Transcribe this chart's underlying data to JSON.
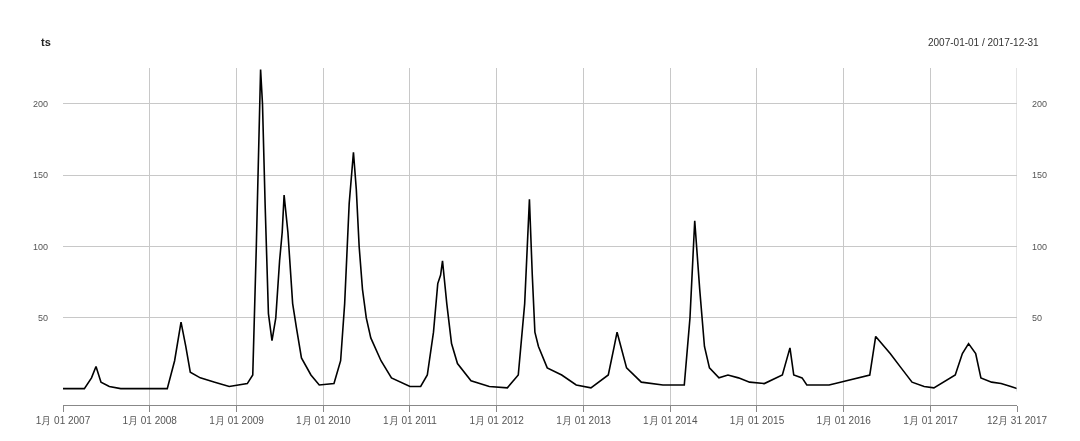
{
  "chart_data": {
    "type": "line",
    "title": "ts",
    "subtitle": "2007-01-01 / 2017-12-31",
    "x": [
      "2007-01-01",
      "2007-04-01",
      "2007-05-01",
      "2007-05-20",
      "2007-06-10",
      "2007-07-15",
      "2007-09-01",
      "2008-03-15",
      "2008-04-15",
      "2008-05-12",
      "2008-06-01",
      "2008-06-20",
      "2008-08-01",
      "2008-10-01",
      "2008-12-01",
      "2009-02-15",
      "2009-03-10",
      "2009-03-25",
      "2009-04-12",
      "2009-04-20",
      "2009-05-01",
      "2009-05-15",
      "2009-05-30",
      "2009-06-15",
      "2009-07-01",
      "2009-07-12",
      "2009-07-20",
      "2009-08-05",
      "2009-08-25",
      "2009-09-10",
      "2009-10-01",
      "2009-11-10",
      "2009-12-15",
      "2010-02-15",
      "2010-03-15",
      "2010-04-01",
      "2010-04-20",
      "2010-05-08",
      "2010-05-20",
      "2010-06-01",
      "2010-06-15",
      "2010-07-01",
      "2010-07-20",
      "2010-09-01",
      "2010-10-15",
      "2011-01-01",
      "2011-02-15",
      "2011-03-15",
      "2011-04-10",
      "2011-04-28",
      "2011-05-10",
      "2011-05-18",
      "2011-06-05",
      "2011-06-25",
      "2011-07-20",
      "2011-09-15",
      "2011-12-01",
      "2012-02-15",
      "2012-04-01",
      "2012-04-28",
      "2012-05-18",
      "2012-05-30",
      "2012-06-10",
      "2012-06-25",
      "2012-08-01",
      "2012-10-01",
      "2012-12-01",
      "2013-02-01",
      "2013-04-15",
      "2013-05-10",
      "2013-05-22",
      "2013-07-01",
      "2013-09-01",
      "2013-12-01",
      "2014-03-01",
      "2014-03-25",
      "2014-04-14",
      "2014-05-05",
      "2014-05-25",
      "2014-06-15",
      "2014-07-25",
      "2014-09-01",
      "2014-10-15",
      "2014-12-01",
      "2015-02-01",
      "2015-04-18",
      "2015-05-20",
      "2015-06-05",
      "2015-07-10",
      "2015-07-30",
      "2015-11-01",
      "2016-04-20",
      "2016-05-15",
      "2016-07-15",
      "2016-08-30",
      "2016-10-15",
      "2016-12-05",
      "2017-01-15",
      "2017-04-15",
      "2017-05-15",
      "2017-06-10",
      "2017-07-10",
      "2017-08-01",
      "2017-09-15",
      "2017-10-25",
      "2017-12-05",
      "2017-12-31"
    ],
    "series": [
      {
        "color": "#000000",
        "values": [
          0.5,
          0.5,
          8,
          16,
          5,
          2,
          0.5,
          0.5,
          20,
          47,
          30,
          12,
          8,
          5,
          2,
          4,
          10,
          100,
          224,
          200,
          130,
          53,
          34,
          50,
          90,
          110,
          136,
          110,
          60,
          43,
          22,
          10,
          3,
          4,
          20,
          60,
          130,
          166,
          140,
          100,
          70,
          50,
          36,
          20,
          8,
          2,
          2,
          10,
          40,
          74,
          80,
          90,
          60,
          32,
          18,
          6,
          2,
          1,
          10,
          60,
          133,
          80,
          40,
          30,
          15,
          10,
          3,
          1,
          10,
          30,
          40,
          15,
          5,
          3,
          3,
          50,
          118,
          70,
          30,
          15,
          8,
          10,
          8,
          5,
          4,
          10,
          29,
          10,
          8,
          3,
          3,
          10,
          37,
          25,
          15,
          5,
          2,
          1,
          10,
          25,
          32,
          25,
          8,
          5,
          4,
          2,
          0.5
        ]
      }
    ],
    "xlim": [
      "2007-01-01",
      "2017-12-31"
    ],
    "xticks": [
      {
        "value": "2007-01-01",
        "label": "1月 01 2007"
      },
      {
        "value": "2008-01-01",
        "label": "1月 01 2008"
      },
      {
        "value": "2009-01-01",
        "label": "1月 01 2009"
      },
      {
        "value": "2010-01-01",
        "label": "1月 01 2010"
      },
      {
        "value": "2011-01-01",
        "label": "1月 01 2011"
      },
      {
        "value": "2012-01-01",
        "label": "1月 01 2012"
      },
      {
        "value": "2013-01-01",
        "label": "1月 01 2013"
      },
      {
        "value": "2014-01-01",
        "label": "1月 01 2014"
      },
      {
        "value": "2015-01-01",
        "label": "1月 01 2015"
      },
      {
        "value": "2016-01-01",
        "label": "1月 01 2016"
      },
      {
        "value": "2017-01-01",
        "label": "1月 01 2017"
      },
      {
        "value": "2017-12-31",
        "label": "12月 31 2017"
      }
    ],
    "ylim": [
      -11,
      225
    ],
    "yticks": [
      50,
      100,
      150,
      200
    ],
    "y2lim": [
      -11,
      225
    ],
    "y2ticks": [
      50,
      100,
      150,
      200
    ],
    "grid": true,
    "line_style": "solid",
    "marker": "none"
  }
}
